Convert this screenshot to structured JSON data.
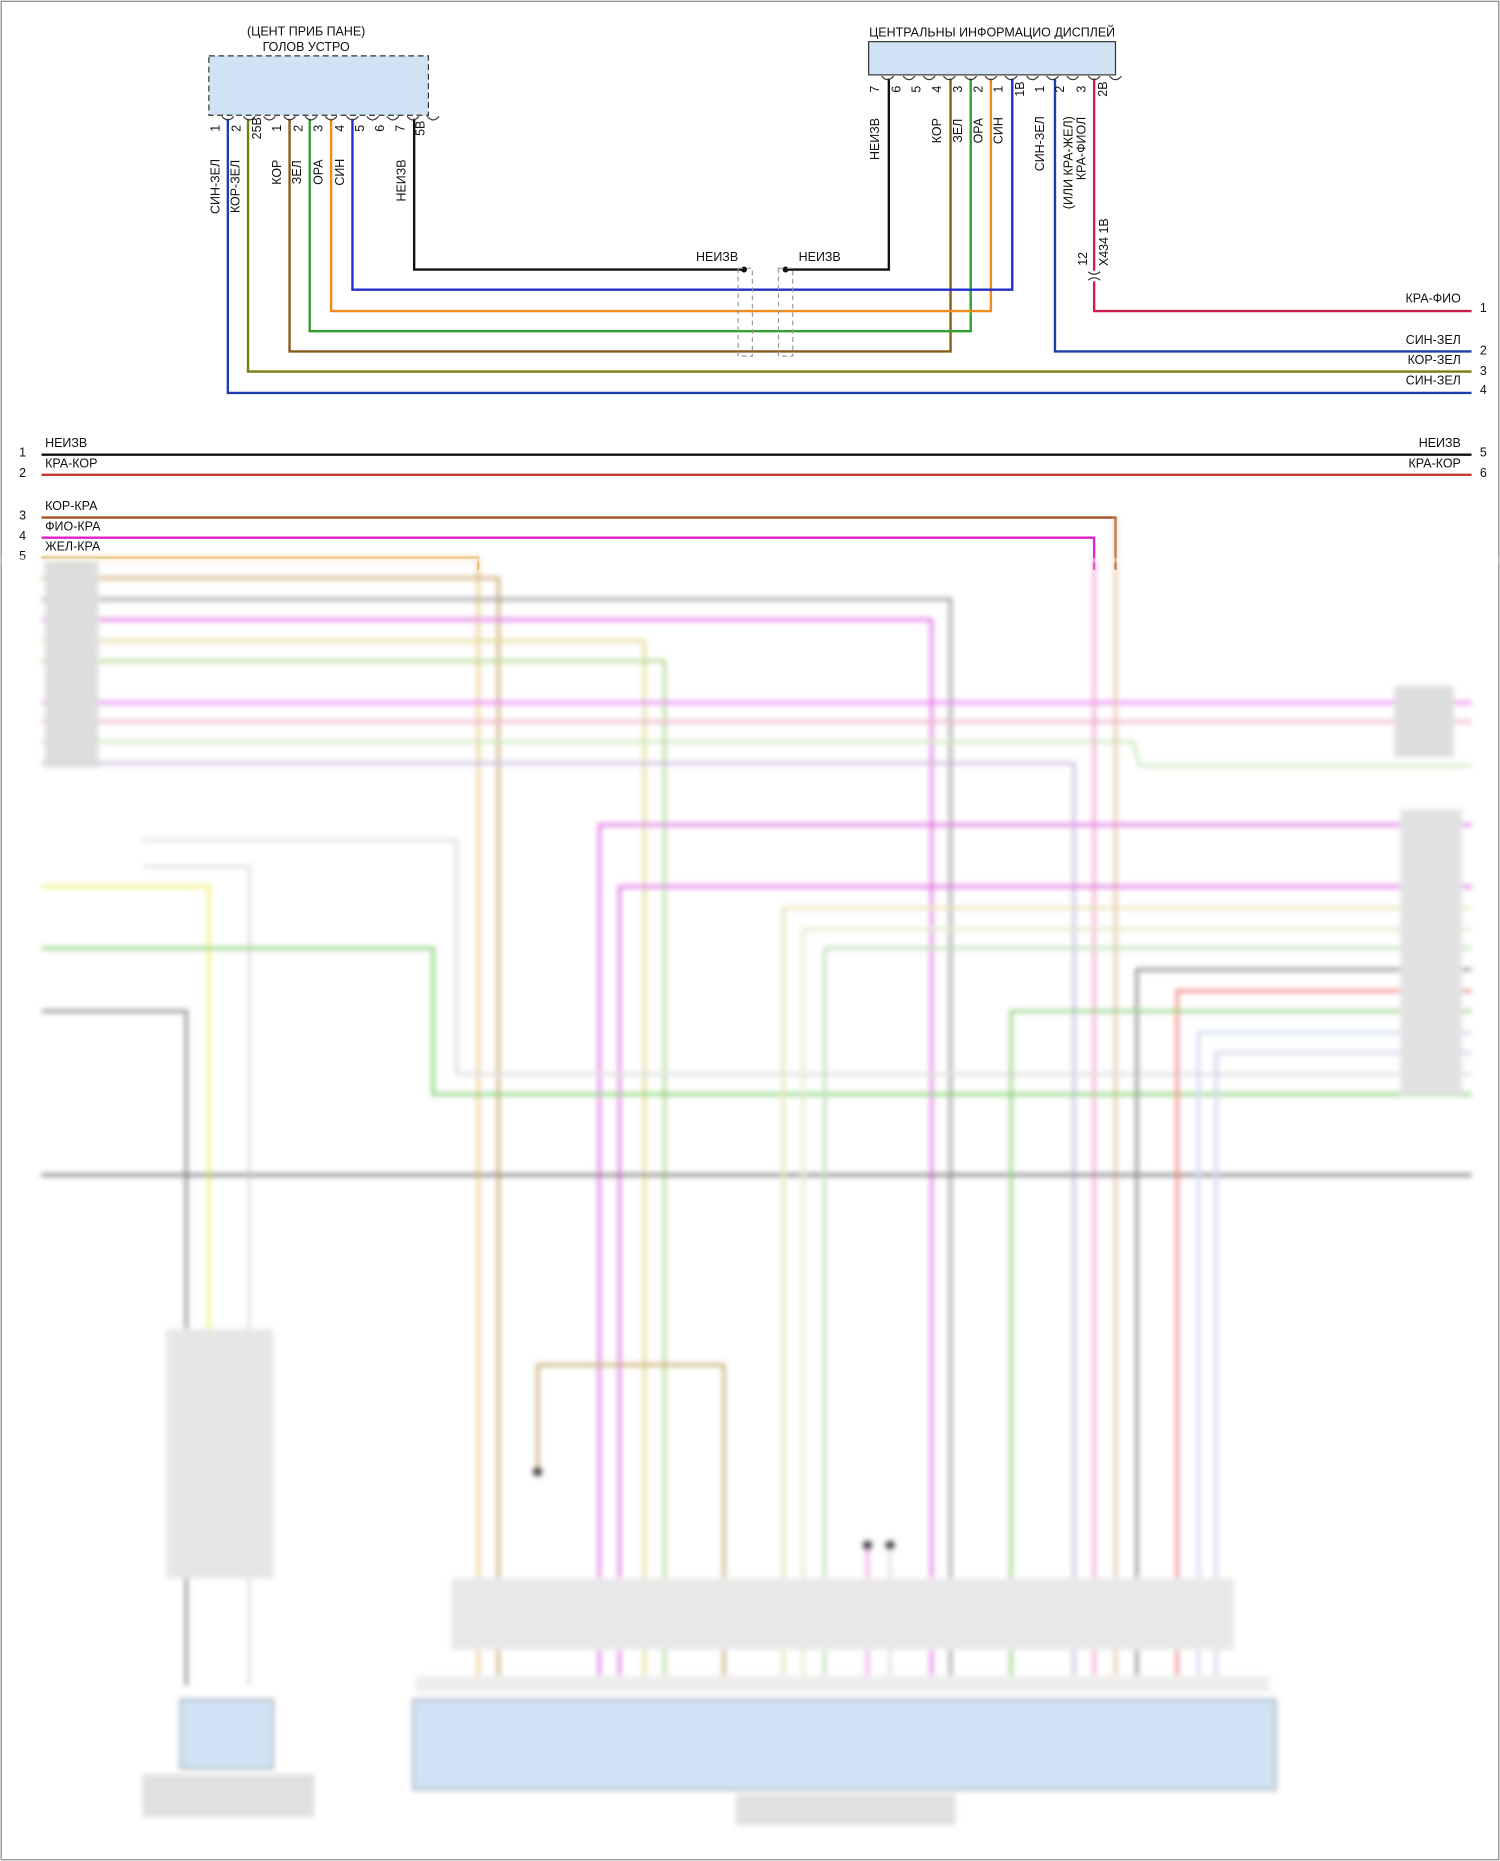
{
  "head_unit": {
    "label": [
      "(ЦЕНТ ПРИБ ПАНЕ)",
      "ГОЛОВ УСТРО"
    ],
    "pins": [
      "1",
      "2",
      "25В",
      "1",
      "2",
      "3",
      "4",
      "5",
      "6",
      "7",
      "5В"
    ],
    "wires": [
      "СИН-ЗЕЛ",
      "КОР-ЗЕЛ",
      "КОР",
      "ЗЕЛ",
      "ОРА",
      "СИН",
      "НЕИЗВ"
    ]
  },
  "display": {
    "label": "ЦЕНТРАЛЬНЫ ИНФОРМАЦИО ДИСПЛЕЙ",
    "pins": [
      "7",
      "6",
      "5",
      "4",
      "3",
      "2",
      "1",
      "1В",
      "1",
      "2",
      "3",
      "2В"
    ],
    "wires": [
      "НЕИЗВ",
      "КОР",
      "ЗЕЛ",
      "ОРА",
      "СИН",
      "СИН-ЗЕЛ",
      "(ИЛИ КРА-ЖЕЛ)",
      "КРА-ФИОЛ"
    ]
  },
  "splice": [
    "НЕИЗВ",
    "НЕИЗВ"
  ],
  "inline_connector": {
    "pin": "12",
    "label": "X434 1В"
  },
  "outputs": [
    {
      "label": "КРА-ФИО",
      "pin": "1"
    },
    {
      "label": "СИН-ЗЕЛ",
      "pin": "2"
    },
    {
      "label": "КОР-ЗЕЛ",
      "pin": "3"
    },
    {
      "label": "СИН-ЗЕЛ",
      "pin": "4"
    }
  ],
  "bus": [
    {
      "pin": "1",
      "label": "НЕИЗВ",
      "end_label": "НЕИЗВ",
      "end_pin": "5"
    },
    {
      "pin": "2",
      "label": "КРА-КОР",
      "end_label": "КРА-КОР",
      "end_pin": "6"
    },
    {
      "pin": "3",
      "label": "КОР-КРА"
    },
    {
      "pin": "4",
      "label": "ФИО-КРА"
    },
    {
      "pin": "5",
      "label": "ЖЕЛ-КРА"
    }
  ]
}
